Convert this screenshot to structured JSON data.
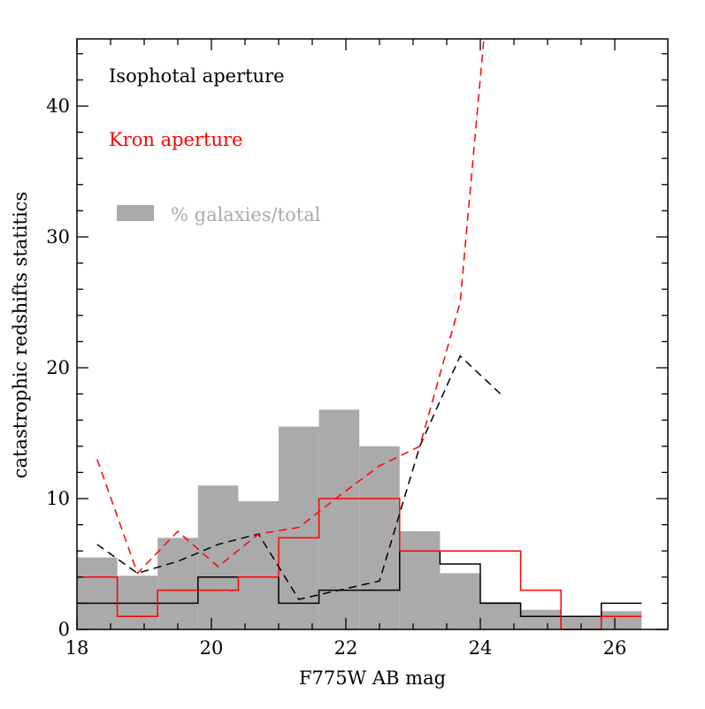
{
  "chart_data": {
    "type": "bar",
    "xlabel": "F775W AB mag",
    "ylabel": "catastrophic redshifts statitics",
    "xlim": [
      18,
      26.5
    ],
    "ylim": [
      0,
      45
    ],
    "x_major_ticks": [
      18,
      20,
      22,
      24,
      26
    ],
    "y_major_ticks": [
      0,
      10,
      20,
      30,
      40
    ],
    "grid": false,
    "annotations": {
      "isophotal": "Isophotal aperture",
      "kron": "Kron aperture",
      "galaxies": "% galaxies/total"
    },
    "colors": {
      "isophotal": "#000000",
      "kron": "#ff0000",
      "galaxies": "#aaaaaa"
    },
    "histogram": {
      "name": "% galaxies/total",
      "edges": [
        18,
        18.6,
        19.2,
        19.8,
        20.4,
        21.0,
        21.6,
        22.2,
        22.8,
        23.4,
        24.0,
        24.6,
        25.2,
        25.8,
        26.4
      ],
      "values": [
        5.5,
        4.1,
        7.0,
        11.0,
        9.8,
        15.5,
        16.8,
        14.0,
        7.5,
        4.3,
        2.1,
        1.5,
        1.0,
        1.4
      ]
    },
    "step_series": [
      {
        "name": "Isophotal aperture",
        "color": "#000000",
        "edges": [
          18,
          18.6,
          19.2,
          19.8,
          20.4,
          21.0,
          21.6,
          22.2,
          22.8,
          23.4,
          24.0,
          24.6,
          25.2,
          25.8,
          26.4
        ],
        "values": [
          2,
          2,
          2,
          4,
          4,
          2,
          3,
          3,
          6,
          5,
          2,
          1,
          1,
          2
        ]
      },
      {
        "name": "Kron aperture",
        "color": "#ff0000",
        "edges": [
          18,
          18.6,
          19.2,
          19.8,
          20.4,
          21.0,
          21.6,
          22.2,
          22.8,
          23.4,
          24.0,
          24.6,
          25.2,
          25.8,
          26.4
        ],
        "values": [
          4,
          1,
          3,
          3,
          4,
          7,
          10,
          10,
          6,
          6,
          6,
          3,
          0,
          1
        ]
      }
    ],
    "dashed_series": [
      {
        "name": "Isophotal aperture",
        "color": "#000000",
        "x": [
          18.3,
          18.9,
          19.5,
          20.1,
          20.7,
          21.3,
          21.9,
          22.5,
          23.1,
          23.7,
          24.3
        ],
        "y": [
          6.5,
          4.3,
          5.2,
          6.5,
          7.3,
          2.3,
          3.0,
          3.7,
          14.0,
          20.9,
          18.0
        ]
      },
      {
        "name": "Kron aperture",
        "color": "#ff0000",
        "x": [
          18.3,
          18.9,
          19.5,
          20.1,
          20.7,
          21.3,
          21.9,
          22.5,
          23.1,
          23.7,
          24.05
        ],
        "y": [
          13.0,
          4.3,
          7.5,
          4.8,
          7.3,
          7.8,
          10.2,
          12.5,
          14.0,
          25.0,
          45.0
        ]
      }
    ]
  }
}
